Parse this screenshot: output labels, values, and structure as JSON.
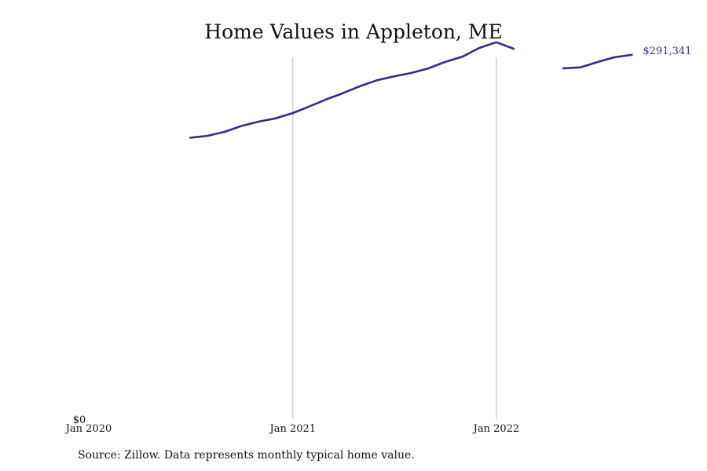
{
  "chart_data": {
    "type": "line",
    "title": "Home Values in Appleton, ME",
    "source": "Source: Zillow. Data represents monthly typical home value.",
    "x_ticks": [
      "Jan 2020",
      "Jan 2021",
      "Jan 2022"
    ],
    "y_ticks": [
      "$0"
    ],
    "ylim": [
      0,
      300000
    ],
    "grid": "vertical lines at Jan 2021 and Jan 2022",
    "colors": {
      "line": "#2e2d8f",
      "grid": "#bbbbbb",
      "text": "#111111"
    },
    "last_value_label": "$291,341",
    "series": [
      {
        "values": [
          {
            "x": "2020-07",
            "y": 225000
          },
          {
            "x": "2020-08",
            "y": 226600
          },
          {
            "x": "2020-09",
            "y": 229800
          },
          {
            "x": "2020-10",
            "y": 234500
          },
          {
            "x": "2020-11",
            "y": 237900
          },
          {
            "x": "2020-12",
            "y": 240500
          },
          {
            "x": "2021-01",
            "y": 244800
          },
          {
            "x": "2021-02",
            "y": 250300
          },
          {
            "x": "2021-03",
            "y": 255500
          },
          {
            "x": "2021-04",
            "y": 260700
          },
          {
            "x": "2021-05",
            "y": 266200
          },
          {
            "x": "2021-06",
            "y": 271000
          },
          {
            "x": "2021-07",
            "y": 274000
          },
          {
            "x": "2021-08",
            "y": 276800
          },
          {
            "x": "2021-09",
            "y": 280500
          },
          {
            "x": "2021-10",
            "y": 285600
          },
          {
            "x": "2021-11",
            "y": 289800
          },
          {
            "x": "2021-12",
            "y": 296800
          },
          {
            "x": "2022-01",
            "y": 301400
          },
          {
            "x": "2022-02",
            "y": 296200
          },
          {
            "x": "2022-03",
            "y": null
          },
          {
            "x": "2022-04",
            "y": null
          },
          {
            "x": "2022-05",
            "y": 280500
          },
          {
            "x": "2022-06",
            "y": 281300
          },
          {
            "x": "2022-07",
            "y": 285500
          },
          {
            "x": "2022-08",
            "y": 289400
          },
          {
            "x": "2022-09",
            "y": 291341
          }
        ]
      }
    ]
  }
}
